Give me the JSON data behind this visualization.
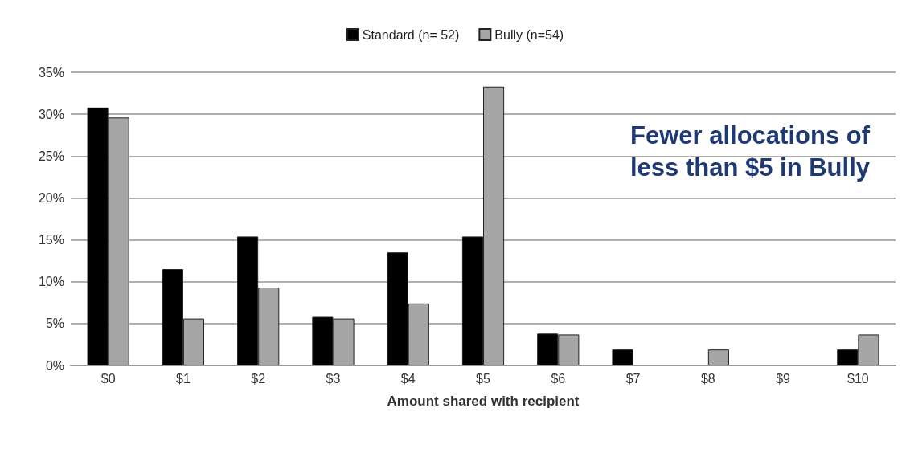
{
  "chart_data": {
    "type": "bar",
    "xlabel": "Amount shared with recipient",
    "categories": [
      "$0",
      "$1",
      "$2",
      "$3",
      "$4",
      "$5",
      "$6",
      "$7",
      "$8",
      "$9",
      "$10"
    ],
    "series": [
      {
        "name": "Standard (n= 52)",
        "color": "#000000",
        "values": [
          30.8,
          11.5,
          15.4,
          5.8,
          13.5,
          15.4,
          3.8,
          1.9,
          0,
          0,
          1.9
        ]
      },
      {
        "name": "Bully (n=54)",
        "color": "#a6a6a6",
        "values": [
          29.6,
          5.6,
          9.3,
          5.6,
          7.4,
          33.3,
          3.7,
          0,
          1.9,
          0,
          3.7
        ]
      }
    ],
    "ylim": [
      0,
      35
    ],
    "yticks": [
      {
        "value": 0,
        "label": "0%"
      },
      {
        "value": 5,
        "label": "5%"
      },
      {
        "value": 10,
        "label": "10%"
      },
      {
        "value": 15,
        "label": "15%"
      },
      {
        "value": 20,
        "label": "20%"
      },
      {
        "value": 25,
        "label": "25%"
      },
      {
        "value": 30,
        "label": "30%"
      },
      {
        "value": 35,
        "label": "35%"
      }
    ],
    "grid": "y",
    "legend": "top",
    "annotations": [
      "Fewer allocations of\nless than $5 in Bully"
    ]
  }
}
